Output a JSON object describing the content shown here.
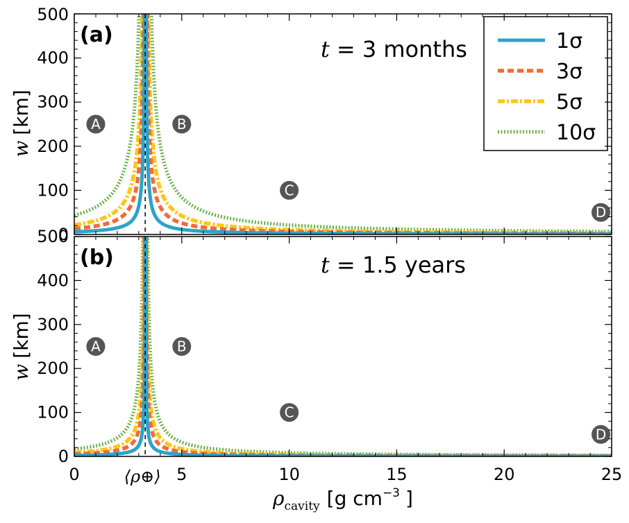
{
  "chart_data": {
    "type": "line",
    "xlabel": "ρ",
    "xlabel_sub": "cavity",
    "xlabel_units": "[g cm",
    "xlabel_exp": "−3",
    "xlabel_close": "]",
    "ylabel_var": "w",
    "ylabel_units": "[km]",
    "xlim": [
      0,
      25
    ],
    "ylim": [
      0,
      500
    ],
    "xticks": [
      "0",
      "5",
      "10",
      "15",
      "20",
      "25"
    ],
    "yticks": [
      "0",
      "100",
      "200",
      "300",
      "400",
      "500"
    ],
    "earth_density_label": "⟨ρ⊕⟩",
    "earth_density_value": 3.3,
    "legend": {
      "position": "top-right",
      "entries": [
        {
          "label": "1σ",
          "color": "#2ea3c8",
          "style": "solid"
        },
        {
          "label": "3σ",
          "color": "#f26b38",
          "style": "dashed"
        },
        {
          "label": "5σ",
          "color": "#ffc61a",
          "style": "dashdot"
        },
        {
          "label": "10σ",
          "color": "#6ab04c",
          "style": "dotted"
        }
      ]
    },
    "panels": [
      {
        "id": "a",
        "tag": "(a)",
        "annotation_var": "t",
        "annotation_value": "= 3 months",
        "series": [
          {
            "name": "1σ",
            "scale": 19.4
          },
          {
            "name": "3σ",
            "scale": 43.7
          },
          {
            "name": "5σ",
            "scale": 72.0
          },
          {
            "name": "10σ",
            "scale": 143.0
          }
        ],
        "markers": [
          {
            "label": "A",
            "x": 1.0,
            "y": 250
          },
          {
            "label": "B",
            "x": 5.0,
            "y": 250
          },
          {
            "label": "C",
            "x": 10.0,
            "y": 100
          },
          {
            "label": "D",
            "x": 24.5,
            "y": 50
          }
        ]
      },
      {
        "id": "b",
        "tag": "(b)",
        "annotation_var": "t",
        "annotation_value": "= 1.5 years",
        "series": [
          {
            "name": "1σ",
            "scale": 7.6
          },
          {
            "name": "3σ",
            "scale": 18.0
          },
          {
            "name": "5σ",
            "scale": 29.5
          },
          {
            "name": "10σ",
            "scale": 55.0
          }
        ],
        "markers": [
          {
            "label": "A",
            "x": 1.0,
            "y": 250
          },
          {
            "label": "B",
            "x": 5.0,
            "y": 250
          },
          {
            "label": "C",
            "x": 10.0,
            "y": 100
          },
          {
            "label": "D",
            "x": 24.5,
            "y": 50
          }
        ]
      }
    ]
  }
}
